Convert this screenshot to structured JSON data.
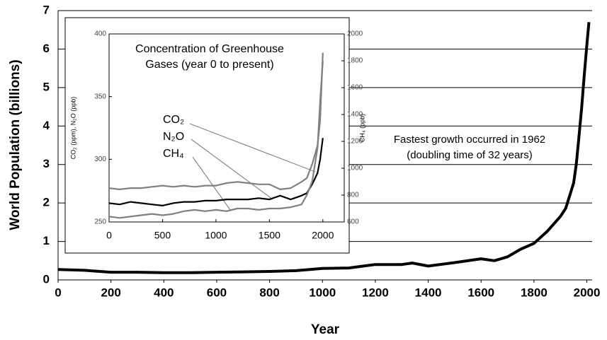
{
  "chart_data": [
    {
      "type": "line",
      "y_label": "World Population (billions)",
      "x_label": "Year",
      "annotations": [
        "Fastest growth occurred in 1962",
        "(doubling time of 32 years)"
      ],
      "x": [
        0,
        100,
        200,
        300,
        400,
        500,
        600,
        700,
        800,
        900,
        1000,
        1100,
        1200,
        1300,
        1340,
        1400,
        1500,
        1600,
        1650,
        1700,
        1750,
        1800,
        1850,
        1900,
        1920,
        1950,
        1960,
        1970,
        1980,
        1990,
        2000,
        2008
      ],
      "series": [
        {
          "name": "World Population",
          "color": "#000000",
          "values": [
            0.27,
            0.25,
            0.2,
            0.2,
            0.19,
            0.19,
            0.2,
            0.21,
            0.22,
            0.24,
            0.3,
            0.31,
            0.4,
            0.4,
            0.44,
            0.36,
            0.45,
            0.55,
            0.5,
            0.6,
            0.8,
            0.95,
            1.26,
            1.65,
            1.86,
            2.52,
            3.0,
            3.7,
            4.45,
            5.3,
            6.1,
            6.7
          ]
        }
      ],
      "xlim": [
        0,
        2020
      ],
      "xticks": [
        0,
        200,
        400,
        600,
        800,
        1000,
        1200,
        1400,
        1600,
        1800,
        2000
      ],
      "ylim": [
        0,
        7
      ],
      "yticks": [
        0,
        1,
        2,
        3,
        4,
        5,
        6,
        7
      ],
      "grid": true
    },
    {
      "type": "line",
      "title": [
        "Concentration of Greenhouse",
        "Gases (year 0 to present)"
      ],
      "y_label": "CO₂ (ppm), N₂O (ppb)",
      "y2_label": "CH₄ (ppb)",
      "x": [
        0,
        100,
        200,
        300,
        400,
        500,
        600,
        700,
        800,
        900,
        1000,
        1100,
        1200,
        1300,
        1400,
        1500,
        1600,
        1700,
        1800,
        1850,
        1900,
        1950,
        1975,
        2000
      ],
      "series": [
        {
          "name": "CO₂",
          "color": "#808080",
          "values": [
            277,
            276,
            277,
            277,
            278,
            279,
            278,
            279,
            278,
            279,
            279,
            281,
            282,
            281,
            280,
            280,
            276,
            277,
            282,
            285,
            296,
            311,
            331,
            385
          ]
        },
        {
          "name": "N₂O",
          "color": "#000000",
          "values": [
            265,
            264,
            266,
            265,
            264,
            263,
            265,
            266,
            266,
            267,
            267,
            268,
            268,
            268,
            269,
            268,
            271,
            268,
            271,
            273,
            280,
            289,
            300,
            317
          ]
        },
        {
          "name": "CH₄",
          "color": "#808080",
          "axis": "y2",
          "values": [
            640,
            630,
            640,
            650,
            660,
            650,
            660,
            680,
            690,
            680,
            690,
            680,
            700,
            700,
            690,
            700,
            700,
            710,
            730,
            800,
            900,
            1150,
            1500,
            1800
          ]
        }
      ],
      "xlim": [
        0,
        2200
      ],
      "xticks": [
        0,
        500,
        1000,
        1500,
        2000
      ],
      "ylim": [
        250,
        400
      ],
      "yticks": [
        250,
        300,
        350,
        400
      ],
      "y2lim": [
        600,
        2000
      ],
      "y2ticks": [
        600,
        800,
        1000,
        1200,
        1400,
        1600,
        1800,
        2000
      ]
    }
  ]
}
